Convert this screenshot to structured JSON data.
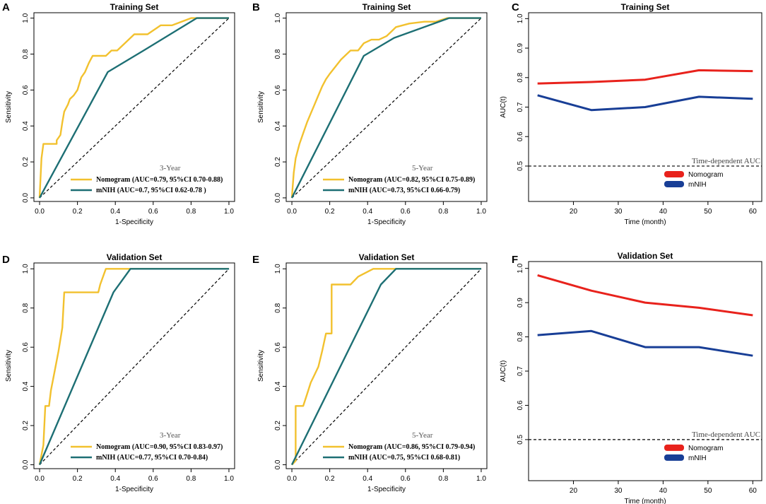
{
  "colors": {
    "nomogram_roc": "#f2c12e",
    "mnih_roc": "#1d6f74",
    "nomogram_auc": "#e8221c",
    "mnih_auc": "#183e96"
  },
  "chart_data": [
    {
      "panel": "A",
      "type": "line",
      "subtype": "roc",
      "title": "Training Set",
      "xlabel": "1-Specificity",
      "ylabel": "Sensitivity",
      "xlim": [
        -0.03,
        1.03
      ],
      "ylim": [
        -0.02,
        1.03
      ],
      "xticks": [
        "0.0",
        "0.2",
        "0.4",
        "0.6",
        "0.8",
        "1.0"
      ],
      "yticks": [
        "0.0",
        "0.2",
        "0.4",
        "0.6",
        "0.8",
        "1.0"
      ],
      "year_label": "3-Year",
      "series": [
        {
          "name": "Nomogram (AUC=0.79, 95%CI 0.70-0.88)",
          "color_key": "nomogram_roc",
          "x": [
            0,
            0.01,
            0.02,
            0.02,
            0.09,
            0.09,
            0.11,
            0.12,
            0.13,
            0.15,
            0.16,
            0.18,
            0.2,
            0.22,
            0.24,
            0.26,
            0.28,
            0.3,
            0.35,
            0.36,
            0.38,
            0.41,
            0.45,
            0.5,
            0.57,
            0.64,
            0.7,
            0.8,
            1.0
          ],
          "y": [
            0,
            0.22,
            0.3,
            0.3,
            0.3,
            0.32,
            0.35,
            0.42,
            0.48,
            0.52,
            0.55,
            0.57,
            0.6,
            0.67,
            0.7,
            0.75,
            0.79,
            0.79,
            0.79,
            0.8,
            0.82,
            0.82,
            0.86,
            0.91,
            0.91,
            0.96,
            0.96,
            1.0,
            1.0
          ]
        },
        {
          "name": "mNIH (AUC=0.7, 95%CI  0.62-0.78 )",
          "color_key": "mnih_roc",
          "x": [
            0,
            0.36,
            0.55,
            0.83,
            1.0
          ],
          "y": [
            0,
            0.7,
            0.82,
            1.0,
            1.0
          ]
        }
      ]
    },
    {
      "panel": "B",
      "type": "line",
      "subtype": "roc",
      "title": "Training Set",
      "xlabel": "1-Specificity",
      "ylabel": "Sensitivity",
      "xlim": [
        -0.03,
        1.03
      ],
      "ylim": [
        -0.02,
        1.03
      ],
      "xticks": [
        "0.0",
        "0.2",
        "0.4",
        "0.6",
        "0.8",
        "1.0"
      ],
      "yticks": [
        "0.0",
        "0.2",
        "0.4",
        "0.6",
        "0.8",
        "1.0"
      ],
      "year_label": "5-Year",
      "series": [
        {
          "name": "Nomogram (AUC=0.82, 95%CI 0.75-0.89)",
          "color_key": "nomogram_roc",
          "x": [
            0,
            0.01,
            0.02,
            0.04,
            0.06,
            0.08,
            0.1,
            0.12,
            0.14,
            0.16,
            0.18,
            0.2,
            0.23,
            0.26,
            0.29,
            0.31,
            0.35,
            0.38,
            0.42,
            0.46,
            0.5,
            0.52,
            0.55,
            0.62,
            0.7,
            0.76,
            0.82,
            1.0
          ],
          "y": [
            0,
            0.14,
            0.22,
            0.3,
            0.36,
            0.42,
            0.47,
            0.52,
            0.57,
            0.62,
            0.66,
            0.69,
            0.73,
            0.77,
            0.8,
            0.82,
            0.82,
            0.86,
            0.88,
            0.88,
            0.9,
            0.92,
            0.95,
            0.97,
            0.98,
            0.98,
            1.0,
            1.0
          ]
        },
        {
          "name": "mNIH (AUC=0.73, 95%CI 0.66-0.79)",
          "color_key": "mnih_roc",
          "x": [
            0,
            0.38,
            0.54,
            0.83,
            1.0
          ],
          "y": [
            0,
            0.79,
            0.89,
            1.0,
            1.0
          ]
        }
      ]
    },
    {
      "panel": "C",
      "type": "line",
      "subtype": "time-dependent-auc",
      "title": "Training Set",
      "xlabel": "Time (month)",
      "ylabel": "AUC(t)",
      "xlim": [
        10,
        62
      ],
      "ylim": [
        0.38,
        1.02
      ],
      "xticks": [
        "20",
        "30",
        "40",
        "50",
        "60"
      ],
      "yticks": [
        "0.5",
        "0.6",
        "0.7",
        "0.8",
        "0.9",
        "1.0"
      ],
      "reference_label": "Time-dependent AUC",
      "reference_y": 0.5,
      "series": [
        {
          "name": "Nomogram",
          "color_key": "nomogram_auc",
          "x": [
            12,
            24,
            36,
            48,
            60
          ],
          "y": [
            0.78,
            0.785,
            0.793,
            0.825,
            0.822
          ]
        },
        {
          "name": "mNIH",
          "color_key": "mnih_auc",
          "x": [
            12,
            24,
            36,
            48,
            60
          ],
          "y": [
            0.74,
            0.69,
            0.7,
            0.735,
            0.728
          ]
        }
      ]
    },
    {
      "panel": "D",
      "type": "line",
      "subtype": "roc",
      "title": "Validation Set",
      "xlabel": "1-Specificity",
      "ylabel": "Sensitivity",
      "xlim": [
        -0.03,
        1.03
      ],
      "ylim": [
        -0.02,
        1.03
      ],
      "xticks": [
        "0.0",
        "0.2",
        "0.4",
        "0.6",
        "0.8",
        "1.0"
      ],
      "yticks": [
        "0.0",
        "0.2",
        "0.4",
        "0.6",
        "0.8",
        "1.0"
      ],
      "year_label": "3-Year",
      "series": [
        {
          "name": "Nomogram (AUC=0.90, 95%CI 0.83-0.97)",
          "color_key": "nomogram_roc",
          "x": [
            0,
            0.02,
            0.03,
            0.05,
            0.06,
            0.08,
            0.1,
            0.12,
            0.13,
            0.31,
            0.32,
            0.35,
            0.37,
            1.0
          ],
          "y": [
            0,
            0.1,
            0.3,
            0.3,
            0.38,
            0.48,
            0.58,
            0.7,
            0.88,
            0.88,
            0.92,
            1.0,
            1.0,
            1.0
          ]
        },
        {
          "name": "mNIH (AUC=0.77, 95%CI 0.70-0.84)",
          "color_key": "mnih_roc",
          "x": [
            0,
            0.39,
            0.48,
            1.0
          ],
          "y": [
            0,
            0.88,
            1.0,
            1.0
          ]
        }
      ]
    },
    {
      "panel": "E",
      "type": "line",
      "subtype": "roc",
      "title": "Validation Set",
      "xlabel": "1-Specificity",
      "ylabel": "Sensitivity",
      "xlim": [
        -0.03,
        1.03
      ],
      "ylim": [
        -0.02,
        1.03
      ],
      "xticks": [
        "0.0",
        "0.2",
        "0.4",
        "0.6",
        "0.8",
        "1.0"
      ],
      "yticks": [
        "0.0",
        "0.2",
        "0.4",
        "0.6",
        "0.8",
        "1.0"
      ],
      "year_label": "5-Year",
      "series": [
        {
          "name": "Nomogram (AUC=0.86, 95%CI 0.79-0.94)",
          "color_key": "nomogram_roc",
          "x": [
            0,
            0.02,
            0.02,
            0.06,
            0.08,
            0.1,
            0.12,
            0.14,
            0.16,
            0.18,
            0.21,
            0.21,
            0.31,
            0.35,
            0.43,
            0.47,
            1.0
          ],
          "y": [
            0,
            0.02,
            0.3,
            0.3,
            0.36,
            0.42,
            0.46,
            0.5,
            0.58,
            0.67,
            0.67,
            0.92,
            0.92,
            0.96,
            1.0,
            1.0,
            1.0
          ]
        },
        {
          "name": "mNIH (AUC=0.75, 95%CI 0.68-0.81)",
          "color_key": "mnih_roc",
          "x": [
            0,
            0.47,
            0.55,
            1.0
          ],
          "y": [
            0,
            0.92,
            1.0,
            1.0
          ]
        }
      ]
    },
    {
      "panel": "F",
      "type": "line",
      "subtype": "time-dependent-auc",
      "title": "Validation Set",
      "xlabel": "Time (month)",
      "ylabel": "AUC(t)",
      "xlim": [
        10,
        62
      ],
      "ylim": [
        0.38,
        1.02
      ],
      "xticks": [
        "20",
        "30",
        "40",
        "50",
        "60"
      ],
      "yticks": [
        "0.5",
        "0.6",
        "0.7",
        "0.8",
        "0.9",
        "1.0"
      ],
      "reference_label": "Time-dependent AUC",
      "reference_y": 0.5,
      "series": [
        {
          "name": "Nomogram",
          "color_key": "nomogram_auc",
          "x": [
            12,
            24,
            36,
            48,
            60
          ],
          "y": [
            0.98,
            0.935,
            0.9,
            0.885,
            0.863
          ]
        },
        {
          "name": "mNIH",
          "color_key": "mnih_auc",
          "x": [
            12,
            24,
            36,
            48,
            60
          ],
          "y": [
            0.805,
            0.817,
            0.77,
            0.77,
            0.745
          ]
        }
      ]
    }
  ]
}
